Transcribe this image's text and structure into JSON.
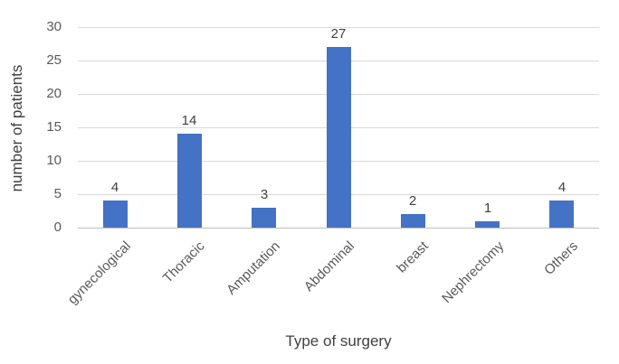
{
  "chart_data": {
    "type": "bar",
    "categories": [
      "gynecological",
      "Thoracic",
      "Amputation",
      "Abdominal",
      "breast",
      "Nephrectomy",
      "Others"
    ],
    "values": [
      4,
      14,
      3,
      27,
      2,
      1,
      4
    ],
    "title": "",
    "xlabel": "Type of surgery",
    "ylabel": "number of patients",
    "ylim": [
      0,
      30
    ],
    "ytick_step": 5,
    "yticks": [
      0,
      5,
      10,
      15,
      20,
      25,
      30
    ],
    "grid": true,
    "legend": false,
    "data_labels": true,
    "colors": {
      "bar": "#4472C4",
      "gridline": "#D9D9D9",
      "axis_line": "#BFBFBF",
      "tick_label": "#595959",
      "data_label": "#404040",
      "axis_title": "#404040",
      "background": "#FFFFFF"
    }
  }
}
